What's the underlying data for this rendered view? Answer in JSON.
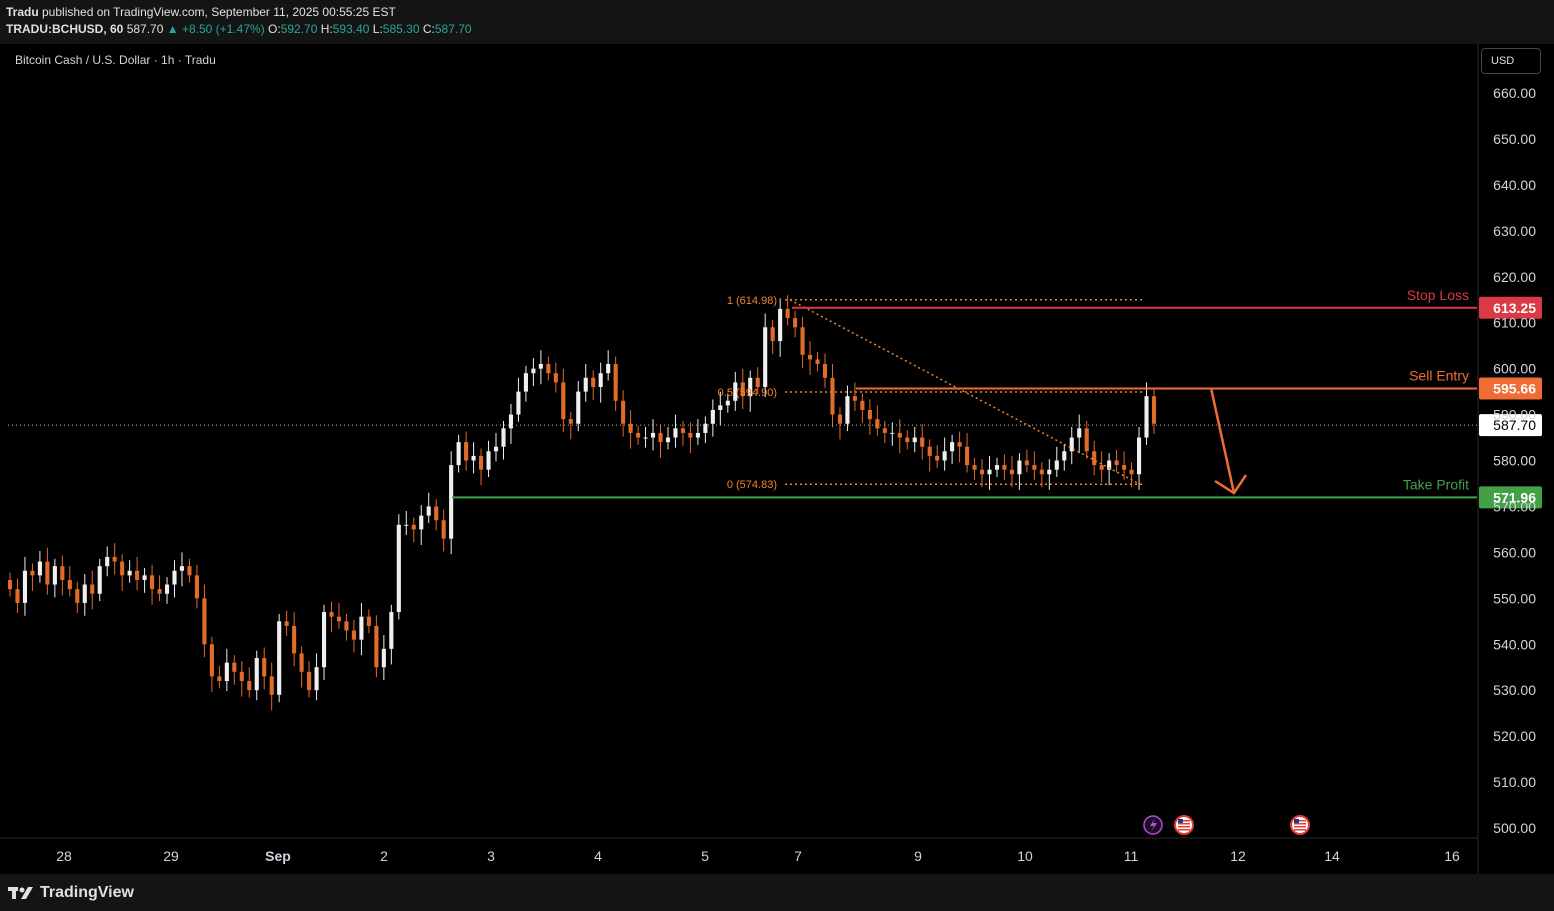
{
  "header": {
    "author": "Tradu",
    "published_text": " published on TradingView.com, September 11, 2025 00:55:25 EST",
    "symbol": "TRADU:BCHUSD, 60",
    "last": "587.70",
    "change": "▲ +8.50 (+1.47%)",
    "o_label": "O:",
    "o": "592.70",
    "h_label": "H:",
    "h": "593.40",
    "l_label": "L:",
    "l": "585.30",
    "c_label": "C:",
    "c": "587.70"
  },
  "pane_title": "Bitcoin Cash / U.S. Dollar · 1h · Tradu",
  "currency_button": "USD",
  "footer": {
    "logo_text": "TradingView"
  },
  "colors": {
    "up": "#f0f0f0",
    "down": "#e06b2a",
    "stop": "#d93a45",
    "entry": "#ef6c35",
    "target": "#43a047",
    "fib": "#f0832b"
  },
  "chart_data": {
    "type": "candlestick",
    "title": "",
    "xlabel": "",
    "ylabel": "",
    "ylim": [
      498,
      670
    ],
    "y_ticks": [
      "660.00",
      "650.00",
      "640.00",
      "630.00",
      "620.00",
      "610.00",
      "600.00",
      "590.00",
      "580.00",
      "570.00",
      "560.00",
      "550.00",
      "540.00",
      "530.00",
      "520.00",
      "510.00",
      "500.00"
    ],
    "x_ticks": [
      "28",
      "29",
      "Sep",
      "2",
      "3",
      "4",
      "5",
      "7",
      "9",
      "10",
      "11",
      "12",
      "14",
      "16"
    ],
    "last_price": "587.70",
    "levels": [
      {
        "name": "Stop Loss",
        "value": "613.25",
        "color_key": "stop"
      },
      {
        "name": "Sell Entry",
        "value": "595.66",
        "color_key": "entry"
      },
      {
        "name": "Take Profit",
        "value": "571.96",
        "color_key": "target"
      }
    ],
    "fibonacci": [
      {
        "label": "1 (614.98)",
        "value": 614.98
      },
      {
        "label": "0.5 (594.90)",
        "value": 594.9
      },
      {
        "label": "0 (574.83)",
        "value": 574.83
      }
    ],
    "candle_closes": [
      552,
      549,
      556,
      555,
      558,
      553,
      557,
      554,
      552,
      549,
      553,
      551,
      557,
      559,
      558,
      555,
      556,
      554,
      555,
      552,
      551,
      553,
      556,
      557,
      555,
      550,
      540,
      533,
      532,
      536,
      534,
      532,
      530,
      537,
      533,
      529,
      545,
      544,
      538,
      534,
      530,
      535,
      547,
      546,
      545,
      543,
      541,
      546,
      544,
      535,
      539,
      547,
      566,
      566,
      565,
      568,
      570,
      567,
      563,
      579,
      584,
      580,
      581,
      578,
      582,
      583,
      587,
      590,
      595,
      599,
      600,
      601,
      599,
      597,
      589,
      588,
      595,
      598,
      596,
      599,
      601,
      593,
      588,
      586,
      585,
      585,
      586,
      584,
      585,
      587,
      586,
      585,
      586,
      588,
      591,
      592,
      593,
      597,
      594,
      598,
      596,
      609,
      606,
      613,
      611,
      609,
      603,
      602,
      601,
      598,
      590,
      588,
      594,
      593,
      591,
      589,
      587,
      586,
      586,
      585,
      584,
      585,
      583,
      581,
      580,
      582,
      584,
      583,
      579,
      578,
      577,
      578,
      579,
      578,
      577,
      580,
      579,
      578,
      577,
      578,
      580,
      582,
      585,
      587,
      582,
      579,
      578,
      580,
      579,
      578,
      577,
      585,
      594,
      588
    ]
  }
}
